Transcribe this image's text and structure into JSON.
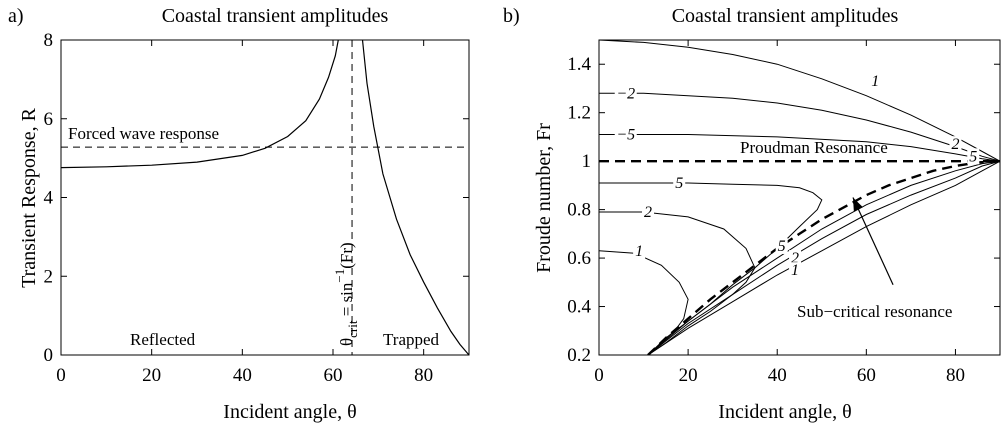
{
  "chart_data": [
    {
      "panel_label": "a)",
      "type": "line",
      "title": "Coastal transient amplitudes",
      "xlabel": "Incident angle, θ",
      "ylabel": "Transient Response, R",
      "xlim": [
        0,
        90
      ],
      "ylim": [
        0,
        8
      ],
      "xticks": [
        0,
        20,
        40,
        60,
        80
      ],
      "yticks": [
        0,
        2,
        4,
        6,
        8
      ],
      "grid": false,
      "reference_lines": {
        "forced_wave_level": 5.28,
        "critical_angle": 64.2
      },
      "series": [
        {
          "x": [
            0,
            10,
            20,
            30,
            40,
            45,
            50,
            54,
            57,
            59,
            60.5,
            61.5,
            62.2
          ],
          "y": [
            4.76,
            4.78,
            4.82,
            4.9,
            5.07,
            5.25,
            5.55,
            5.95,
            6.5,
            7.05,
            7.6,
            8.2,
            8.8
          ]
        },
        {
          "x": [
            65.8,
            66.5,
            67.5,
            69,
            71,
            74,
            77,
            80,
            83,
            86,
            88,
            90
          ],
          "y": [
            8.8,
            8.0,
            6.9,
            5.8,
            4.6,
            3.45,
            2.55,
            1.85,
            1.2,
            0.6,
            0.27,
            0
          ]
        }
      ],
      "annotations": {
        "forced": "Forced wave response",
        "reflected": "Reflected",
        "trapped": "Trapped",
        "theta_crit": {
          "base": "θ",
          "sub": "crit",
          "mid": " = sin",
          "sup": "−1",
          "end": "(Fr)"
        }
      }
    },
    {
      "panel_label": "b)",
      "type": "line",
      "title": "Coastal transient amplitudes",
      "xlabel": "Incident angle, θ",
      "ylabel": "Froude number, Fr",
      "xlim": [
        0,
        90
      ],
      "ylim": [
        0.2,
        1.5
      ],
      "xticks": [
        0,
        20,
        40,
        60,
        80
      ],
      "yticks": [
        0.2,
        0.4,
        0.6,
        0.8,
        1,
        1.2,
        1.4
      ],
      "ytick_labels": [
        "0.2",
        "0.4",
        "0.6",
        "0.8",
        "1",
        "1.2",
        "1.4"
      ],
      "grid": false,
      "proudman_level": 1,
      "resonance_curve": {
        "x": [
          11,
          15,
          20,
          25,
          30,
          35,
          40,
          45,
          50,
          55,
          60,
          65,
          70,
          75,
          80,
          85,
          90
        ],
        "y": [
          0.2,
          0.27,
          0.35,
          0.43,
          0.5,
          0.57,
          0.64,
          0.7,
          0.76,
          0.81,
          0.86,
          0.9,
          0.93,
          0.96,
          0.98,
          0.995,
          1.0
        ]
      },
      "contours": [
        {
          "level": "1",
          "x": [
            0,
            10,
            20,
            30,
            40,
            50,
            60,
            70,
            80,
            86,
            90
          ],
          "y": [
            1.5,
            1.49,
            1.47,
            1.44,
            1.4,
            1.34,
            1.27,
            1.19,
            1.1,
            1.04,
            1.0
          ]
        },
        {
          "level": "−2",
          "x": [
            0,
            10,
            20,
            30,
            40,
            50,
            60,
            70,
            80,
            86,
            90
          ],
          "y": [
            1.28,
            1.28,
            1.27,
            1.26,
            1.24,
            1.21,
            1.17,
            1.12,
            1.06,
            1.02,
            1.0
          ]
        },
        {
          "level": "−5",
          "x": [
            0,
            20,
            40,
            60,
            70,
            80,
            86,
            90
          ],
          "y": [
            1.11,
            1.11,
            1.1,
            1.08,
            1.06,
            1.03,
            1.01,
            1.0
          ]
        },
        {
          "level": "5",
          "x": [
            0,
            10,
            20,
            30,
            40,
            45,
            48,
            50,
            49,
            45,
            40,
            35,
            30,
            25,
            20,
            15,
            11
          ],
          "y": [
            0.91,
            0.91,
            0.91,
            0.905,
            0.9,
            0.89,
            0.87,
            0.84,
            0.8,
            0.73,
            0.64,
            0.56,
            0.49,
            0.41,
            0.34,
            0.27,
            0.2
          ]
        },
        {
          "level": "2",
          "x": [
            0,
            10,
            20,
            28,
            33,
            35,
            33,
            30,
            25,
            20,
            15,
            11
          ],
          "y": [
            0.79,
            0.79,
            0.77,
            0.72,
            0.64,
            0.56,
            0.5,
            0.45,
            0.38,
            0.32,
            0.25,
            0.2
          ]
        },
        {
          "level": "1",
          "x": [
            0,
            8,
            14,
            18,
            20,
            19,
            17,
            14,
            11
          ],
          "y": [
            0.63,
            0.62,
            0.57,
            0.5,
            0.43,
            0.35,
            0.3,
            0.25,
            0.2
          ]
        },
        {
          "level": "2",
          "x": [
            11,
            20,
            30,
            40,
            50,
            60,
            70,
            80,
            86,
            90
          ],
          "y": [
            0.2,
            0.33,
            0.45,
            0.57,
            0.68,
            0.78,
            0.86,
            0.93,
            0.98,
            1.0
          ]
        },
        {
          "level": "1",
          "x": [
            11,
            20,
            30,
            40,
            50,
            60,
            70,
            80,
            86,
            90
          ],
          "y": [
            0.2,
            0.31,
            0.42,
            0.53,
            0.63,
            0.73,
            0.82,
            0.9,
            0.96,
            1.0
          ]
        },
        {
          "level": "5",
          "x": [
            11,
            20,
            30,
            40,
            50,
            60,
            70,
            80,
            86,
            90
          ],
          "y": [
            0.2,
            0.34,
            0.48,
            0.6,
            0.72,
            0.82,
            0.9,
            0.96,
            0.99,
            1.0
          ]
        }
      ],
      "contour_labels": [
        {
          "text": "1",
          "x": 62,
          "y": 1.33
        },
        {
          "text": "−2",
          "x": 6,
          "y": 1.28
        },
        {
          "text": "2",
          "x": 80,
          "y": 1.07
        },
        {
          "text": "−5",
          "x": 6,
          "y": 1.11
        },
        {
          "text": "5",
          "x": 84,
          "y": 1.02
        },
        {
          "text": "5",
          "x": 18,
          "y": 0.91
        },
        {
          "text": "2",
          "x": 11,
          "y": 0.79
        },
        {
          "text": "1",
          "x": 9,
          "y": 0.63
        },
        {
          "text": "5",
          "x": 41,
          "y": 0.65
        },
        {
          "text": "2",
          "x": 44,
          "y": 0.6
        },
        {
          "text": "1",
          "x": 44,
          "y": 0.55
        }
      ],
      "annotations": {
        "proudman": "Proudman Resonance",
        "subcritical": "Sub−critical resonance",
        "arrow_tip": {
          "x": 57,
          "y": 0.85
        },
        "arrow_tail": {
          "x": 66,
          "y": 0.49
        }
      }
    }
  ]
}
